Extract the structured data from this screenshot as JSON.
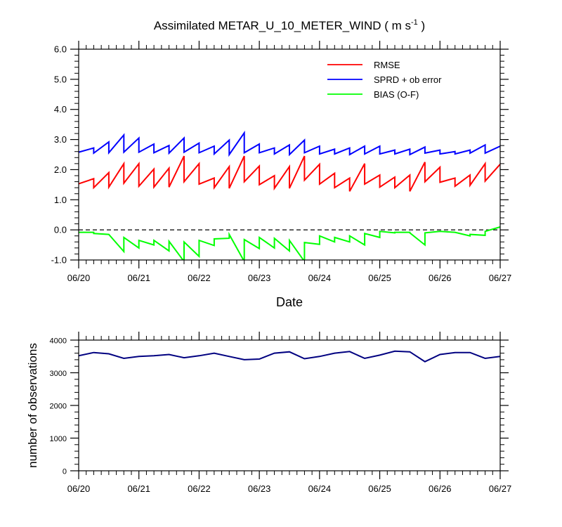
{
  "title": {
    "main": "Assimilated METAR_U_10_METER_WIND ( m s",
    "sup": "-1",
    "close": " )"
  },
  "chart_data": [
    {
      "type": "line",
      "xlabel": "Date",
      "ylabel": "",
      "x_tick_labels": [
        "06/20",
        "06/21",
        "06/22",
        "06/23",
        "06/24",
        "06/25",
        "06/26",
        "06/27"
      ],
      "xlim": [
        0,
        7
      ],
      "ylim": [
        -1.0,
        6.0
      ],
      "y_tick_labels": [
        "-1.0",
        "0.0",
        "1.0",
        "2.0",
        "3.0",
        "4.0",
        "5.0",
        "6.0"
      ],
      "y_ticks": [
        -1,
        0,
        1,
        2,
        3,
        4,
        5,
        6
      ],
      "zero_line": "dashed",
      "legend": {
        "placement": "top-right"
      },
      "x": [
        0,
        0.25,
        0.25,
        0.5,
        0.5,
        0.75,
        0.75,
        1,
        1,
        1.25,
        1.25,
        1.5,
        1.5,
        1.75,
        1.75,
        2,
        2,
        2.25,
        2.25,
        2.5,
        2.5,
        2.75,
        2.75,
        3,
        3,
        3.25,
        3.25,
        3.5,
        3.5,
        3.75,
        3.75,
        4,
        4,
        4.25,
        4.25,
        4.5,
        4.5,
        4.75,
        4.75,
        5,
        5,
        5.25,
        5.25,
        5.5,
        5.5,
        5.75,
        5.75,
        6,
        6,
        6.25,
        6.25,
        6.5,
        6.5,
        6.75,
        6.75,
        7
      ],
      "series": [
        {
          "name": "RMSE",
          "color": "#ff0000",
          "values": [
            1.53,
            1.7,
            1.4,
            1.9,
            1.42,
            2.2,
            1.55,
            2.2,
            1.45,
            2.02,
            1.42,
            2.05,
            1.42,
            2.45,
            1.6,
            2.2,
            1.52,
            1.72,
            1.4,
            2.1,
            1.38,
            2.45,
            1.6,
            2.12,
            1.5,
            1.8,
            1.38,
            2.1,
            1.38,
            2.45,
            1.65,
            2.18,
            1.52,
            1.88,
            1.4,
            1.72,
            1.28,
            2.2,
            1.52,
            1.82,
            1.42,
            1.75,
            1.4,
            1.82,
            1.28,
            2.25,
            1.6,
            2.08,
            1.58,
            1.72,
            1.45,
            1.82,
            1.48,
            2.2,
            1.62,
            2.18
          ]
        },
        {
          "name": "SPRD + ob error",
          "color": "#0000ff",
          "values": [
            2.58,
            2.72,
            2.55,
            2.92,
            2.56,
            3.15,
            2.58,
            3.05,
            2.58,
            2.85,
            2.56,
            2.8,
            2.55,
            3.05,
            2.58,
            2.88,
            2.56,
            2.78,
            2.52,
            2.98,
            2.5,
            3.22,
            2.56,
            2.85,
            2.56,
            2.72,
            2.52,
            2.82,
            2.5,
            2.98,
            2.56,
            2.78,
            2.52,
            2.68,
            2.52,
            2.72,
            2.5,
            2.78,
            2.52,
            2.78,
            2.52,
            2.65,
            2.52,
            2.68,
            2.5,
            2.75,
            2.55,
            2.65,
            2.52,
            2.6,
            2.52,
            2.65,
            2.55,
            2.82,
            2.55,
            2.78
          ]
        },
        {
          "name": "BIAS (O-F)",
          "color": "#00ff00",
          "values": [
            -0.08,
            -0.08,
            -0.12,
            -0.15,
            -0.15,
            -0.72,
            -0.25,
            -0.6,
            -0.35,
            -0.5,
            -0.35,
            -0.7,
            -0.38,
            -1.05,
            -0.4,
            -0.88,
            -0.35,
            -0.52,
            -0.3,
            -0.28,
            -0.15,
            -1.05,
            -0.32,
            -0.62,
            -0.25,
            -0.6,
            -0.28,
            -0.7,
            -0.35,
            -1.05,
            -0.42,
            -0.48,
            -0.2,
            -0.4,
            -0.25,
            -0.4,
            -0.2,
            -0.5,
            -0.12,
            -0.25,
            -0.05,
            -0.1,
            -0.08,
            -0.08,
            -0.1,
            -0.5,
            -0.1,
            -0.05,
            -0.05,
            -0.08,
            -0.08,
            -0.2,
            -0.15,
            -0.18,
            -0.05,
            0.1
          ]
        }
      ]
    },
    {
      "type": "line",
      "xlabel": "",
      "ylabel": "number of observations",
      "x_tick_labels": [
        "06/20",
        "06/21",
        "06/22",
        "06/23",
        "06/24",
        "06/25",
        "06/26",
        "06/27"
      ],
      "xlim": [
        0,
        7
      ],
      "ylim": [
        0,
        4000
      ],
      "y_tick_labels": [
        "0",
        "1000",
        "2000",
        "3000",
        "4000"
      ],
      "y_ticks": [
        0,
        1000,
        2000,
        3000,
        4000
      ],
      "x": [
        0,
        0.25,
        0.5,
        0.75,
        1,
        1.25,
        1.5,
        1.75,
        2,
        2.25,
        2.5,
        2.75,
        3,
        3.25,
        3.5,
        3.75,
        4,
        4.25,
        4.5,
        4.75,
        5,
        5.25,
        5.5,
        5.75,
        6,
        6.25,
        6.5,
        6.75,
        7
      ],
      "series": [
        {
          "color": "#000080",
          "values": [
            3520,
            3620,
            3580,
            3440,
            3500,
            3520,
            3560,
            3460,
            3520,
            3600,
            3500,
            3400,
            3420,
            3600,
            3640,
            3430,
            3500,
            3600,
            3650,
            3440,
            3540,
            3660,
            3640,
            3340,
            3560,
            3620,
            3620,
            3440,
            3500
          ]
        }
      ]
    }
  ]
}
